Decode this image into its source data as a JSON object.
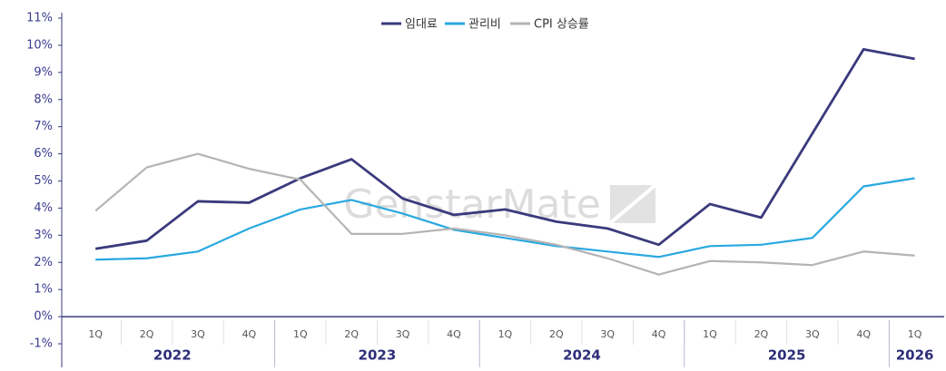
{
  "chart_data": {
    "type": "line",
    "watermark": "GenstarMate",
    "categories": [
      "1Q",
      "2Q",
      "3Q",
      "4Q",
      "1Q",
      "2Q",
      "3Q",
      "4Q",
      "1Q",
      "2Q",
      "3Q",
      "4Q",
      "1Q",
      "2Q",
      "3Q",
      "4Q",
      "1Q"
    ],
    "year_groups": [
      {
        "label": "2022",
        "quarters": 4
      },
      {
        "label": "2023",
        "quarters": 4
      },
      {
        "label": "2024",
        "quarters": 4
      },
      {
        "label": "2025",
        "quarters": 4
      },
      {
        "label": "2026",
        "quarters": 1
      }
    ],
    "series": [
      {
        "name": "임대료",
        "color": "#3a3a7c",
        "values": [
          2.5,
          2.8,
          4.25,
          4.2,
          5.1,
          5.8,
          4.35,
          3.75,
          3.95,
          3.5,
          3.25,
          2.65,
          4.15,
          3.65,
          6.75,
          9.85,
          9.5
        ]
      },
      {
        "name": "관리비",
        "color": "#29a8e0",
        "values": [
          2.1,
          2.15,
          2.4,
          3.25,
          3.95,
          4.3,
          3.8,
          3.2,
          2.9,
          2.6,
          2.4,
          2.2,
          2.6,
          2.65,
          2.9,
          4.8,
          5.1
        ]
      },
      {
        "name": "CPI 상승률",
        "color": "#b4b4b4",
        "values": [
          3.9,
          5.5,
          6.0,
          5.45,
          5.05,
          3.05,
          3.05,
          3.25,
          3.0,
          2.65,
          2.15,
          1.55,
          2.05,
          2.0,
          1.9,
          2.4,
          2.25
        ]
      }
    ],
    "ylim": [
      -1,
      11
    ],
    "yticks": [
      {
        "value": -1,
        "label": "-1%"
      },
      {
        "value": 0,
        "label": "0%"
      },
      {
        "value": 1,
        "label": "1%"
      },
      {
        "value": 2,
        "label": "2%"
      },
      {
        "value": 3,
        "label": "3%"
      },
      {
        "value": 4,
        "label": "4%"
      },
      {
        "value": 5,
        "label": "5%"
      },
      {
        "value": 6,
        "label": "6%"
      },
      {
        "value": 7,
        "label": "7%"
      },
      {
        "value": 8,
        "label": "8%"
      },
      {
        "value": 9,
        "label": "9%"
      },
      {
        "value": 10,
        "label": "10%"
      },
      {
        "value": 11,
        "label": "11%"
      }
    ],
    "grid": false,
    "legend": "top"
  }
}
